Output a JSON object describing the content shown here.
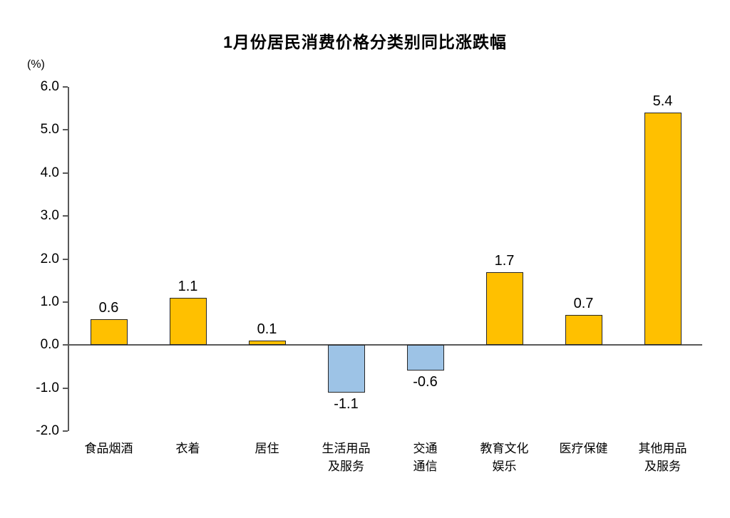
{
  "title": "1月份居民消费价格分类别同比涨跌幅",
  "unit_label": "(%)",
  "chart_data": {
    "type": "bar",
    "title": "1月份居民消费价格分类别同比涨跌幅",
    "ylabel": "(%)",
    "xlabel": "",
    "categories": [
      "食品烟酒",
      "衣着",
      "居住",
      "生活用品\n及服务",
      "交通\n通信",
      "教育文化\n娱乐",
      "医疗保健",
      "其他用品\n及服务"
    ],
    "values": [
      0.6,
      1.1,
      0.1,
      -1.1,
      -0.6,
      1.7,
      0.7,
      5.4
    ],
    "value_labels": [
      "0.6",
      "1.1",
      "0.1",
      "-1.1",
      "-0.6",
      "1.7",
      "0.7",
      "5.4"
    ],
    "ylim": [
      -2.0,
      6.0
    ],
    "ytick_step": 1.0,
    "yticks": [
      "6.0",
      "5.0",
      "4.0",
      "3.0",
      "2.0",
      "1.0",
      "0.0",
      "-1.0",
      "-2.0"
    ],
    "grid": false,
    "legend": false,
    "positive_color": "#FFC000",
    "negative_color": "#9DC3E6",
    "bar_border_color": "#262626",
    "axis_color": "#595959"
  }
}
